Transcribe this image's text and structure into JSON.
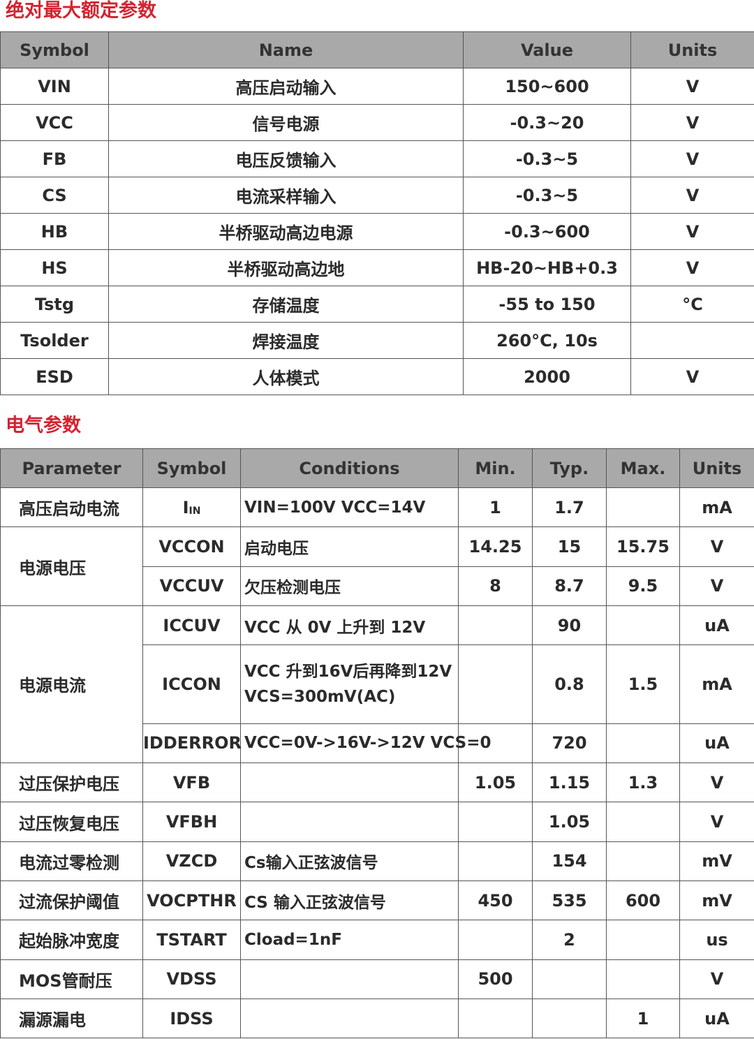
{
  "section1": {
    "title": "绝对最大额定参数",
    "headers": [
      "Symbol",
      "Name",
      "Value",
      "Units"
    ],
    "rows": [
      [
        "VIN",
        "高压启动输入",
        "150~600",
        "V"
      ],
      [
        "VCC",
        "信号电源",
        "-0.3~20",
        "V"
      ],
      [
        "FB",
        "电压反馈输入",
        "-0.3~5",
        "V"
      ],
      [
        "CS",
        "电流采样输入",
        "-0.3~5",
        "V"
      ],
      [
        "HB",
        "半桥驱动高边电源",
        "-0.3~600",
        "V"
      ],
      [
        "HS",
        "半桥驱动高边地",
        "HB-20~HB+0.3",
        "V"
      ],
      [
        "Tstg",
        "存储温度",
        "-55 to 150",
        "°C"
      ],
      [
        "Tsolder",
        "焊接温度",
        "260°C, 10s",
        ""
      ],
      [
        "ESD",
        "人体模式",
        "2000",
        "V"
      ]
    ]
  },
  "section2": {
    "title": "电气参数",
    "headers": [
      "Parameter",
      "Symbol",
      "Conditions",
      "Min.",
      "Typ.",
      "Max.",
      "Units"
    ],
    "rows": [
      {
        "parameter": "高压启动电流",
        "symbol": "I",
        "symbol_sub": "IN",
        "conditions": "VIN=100V VCC=14V",
        "min": "1",
        "typ": "1.7",
        "max": "",
        "units": "mA"
      },
      {
        "parameter": "电源电压",
        "param_span": 2,
        "symbol": "VCCON",
        "conditions": "启动电压",
        "min": "14.25",
        "typ": "15",
        "max": "15.75",
        "units": "V"
      },
      {
        "symbol": "VCCUV",
        "conditions": "欠压检测电压",
        "min": "8",
        "typ": "8.7",
        "max": "9.5",
        "units": "V"
      },
      {
        "parameter": "电源电流",
        "param_span": 3,
        "symbol": "ICCUV",
        "conditions": "VCC 从 0V 上升到 12V",
        "min": "",
        "typ": "90",
        "max": "",
        "units": "uA"
      },
      {
        "symbol": "ICCON",
        "conditions": "VCC 升到16V后再降到12V",
        "conditions2": "VCS=300mV(AC)",
        "min": "",
        "typ": "0.8",
        "max": "1.5",
        "units": "mA",
        "tall": true
      },
      {
        "symbol": "IDDERROR",
        "conditions": "VCC=0V->16V->12V VCS=0",
        "min": "",
        "typ": "720",
        "max": "",
        "units": "uA"
      },
      {
        "parameter": "过压保护电压",
        "symbol": "VFB",
        "conditions": "",
        "min": "1.05",
        "typ": "1.15",
        "max": "1.3",
        "units": "V"
      },
      {
        "parameter": "过压恢复电压",
        "symbol": "VFBH",
        "conditions": "",
        "min": "",
        "typ": "1.05",
        "max": "",
        "units": "V"
      },
      {
        "parameter": "电流过零检测",
        "symbol": "VZCD",
        "conditions": "Cs输入正弦波信号",
        "min": "",
        "typ": "154",
        "max": "",
        "units": "mV"
      },
      {
        "parameter": "过流保护阈值",
        "symbol": "VOCPTHR",
        "conditions": "CS 输入正弦波信号",
        "min": "450",
        "typ": "535",
        "max": "600",
        "units": "mV"
      },
      {
        "parameter": "起始脉冲宽度",
        "symbol": "TSTART",
        "conditions": "Cload=1nF",
        "min": "",
        "typ": "2",
        "max": "",
        "units": "us"
      },
      {
        "parameter": "MOS管耐压",
        "symbol": "VDSS",
        "conditions": "",
        "min": "500",
        "typ": "",
        "max": "",
        "units": "V"
      },
      {
        "parameter": "漏源漏电",
        "symbol": "IDSS",
        "conditions": "",
        "min": "",
        "typ": "",
        "max": "1",
        "units": "uA"
      }
    ]
  },
  "colors": {
    "title": "#d32330",
    "header_bg": "#a9a9a9",
    "border": "#555555"
  }
}
